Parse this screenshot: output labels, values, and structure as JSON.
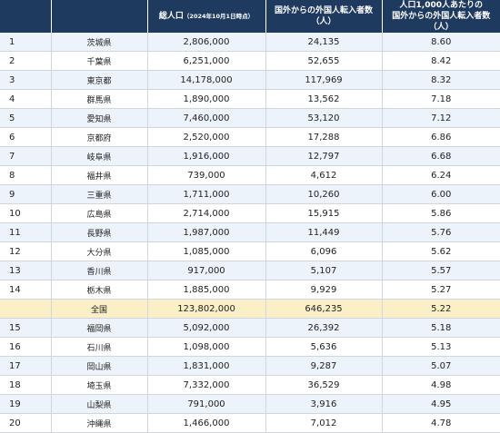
{
  "headers": {
    "rank": "",
    "prefecture": "",
    "population_main": "総人口",
    "population_sub": "（2024年10月1日時点）",
    "inflow": "国外からの外国人転入者数（人）",
    "rate_line1": "人口1,000人あたりの",
    "rate_line2": "国外からの外国人転入者数（人）"
  },
  "rows": [
    {
      "rank": "1",
      "prefecture": "茨城県",
      "population": "2,806,000",
      "inflow": "24,135",
      "rate": "8.60"
    },
    {
      "rank": "2",
      "prefecture": "千葉県",
      "population": "6,251,000",
      "inflow": "52,655",
      "rate": "8.42"
    },
    {
      "rank": "3",
      "prefecture": "東京都",
      "population": "14,178,000",
      "inflow": "117,969",
      "rate": "8.32"
    },
    {
      "rank": "4",
      "prefecture": "群馬県",
      "population": "1,890,000",
      "inflow": "13,562",
      "rate": "7.18"
    },
    {
      "rank": "5",
      "prefecture": "愛知県",
      "population": "7,460,000",
      "inflow": "53,120",
      "rate": "7.12"
    },
    {
      "rank": "6",
      "prefecture": "京都府",
      "population": "2,520,000",
      "inflow": "17,288",
      "rate": "6.86"
    },
    {
      "rank": "7",
      "prefecture": "岐阜県",
      "population": "1,916,000",
      "inflow": "12,797",
      "rate": "6.68"
    },
    {
      "rank": "8",
      "prefecture": "福井県",
      "population": "739,000",
      "inflow": "4,612",
      "rate": "6.24"
    },
    {
      "rank": "9",
      "prefecture": "三重県",
      "population": "1,711,000",
      "inflow": "10,260",
      "rate": "6.00"
    },
    {
      "rank": "10",
      "prefecture": "広島県",
      "population": "2,714,000",
      "inflow": "15,915",
      "rate": "5.86"
    },
    {
      "rank": "11",
      "prefecture": "長野県",
      "population": "1,987,000",
      "inflow": "11,449",
      "rate": "5.76"
    },
    {
      "rank": "12",
      "prefecture": "大分県",
      "population": "1,085,000",
      "inflow": "6,096",
      "rate": "5.62"
    },
    {
      "rank": "13",
      "prefecture": "香川県",
      "population": "917,000",
      "inflow": "5,107",
      "rate": "5.57"
    },
    {
      "rank": "14",
      "prefecture": "栃木県",
      "population": "1,885,000",
      "inflow": "9,929",
      "rate": "5.27"
    },
    {
      "rank": "",
      "prefecture": "全国",
      "population": "123,802,000",
      "inflow": "646,235",
      "rate": "5.22",
      "total": true
    },
    {
      "rank": "15",
      "prefecture": "福岡県",
      "population": "5,092,000",
      "inflow": "26,392",
      "rate": "5.18"
    },
    {
      "rank": "16",
      "prefecture": "石川県",
      "population": "1,098,000",
      "inflow": "5,636",
      "rate": "5.13"
    },
    {
      "rank": "17",
      "prefecture": "岡山県",
      "population": "1,831,000",
      "inflow": "9,287",
      "rate": "5.07"
    },
    {
      "rank": "18",
      "prefecture": "埼玉県",
      "population": "7,332,000",
      "inflow": "36,529",
      "rate": "4.98"
    },
    {
      "rank": "19",
      "prefecture": "山梨県",
      "population": "791,000",
      "inflow": "3,916",
      "rate": "4.95"
    },
    {
      "rank": "20",
      "prefecture": "沖縄県",
      "population": "1,466,000",
      "inflow": "7,012",
      "rate": "4.78"
    }
  ],
  "colors": {
    "header_bg": "#1f3a5f",
    "row_odd_bg": "#edf3fa",
    "total_row_bg": "#fbefc8"
  }
}
